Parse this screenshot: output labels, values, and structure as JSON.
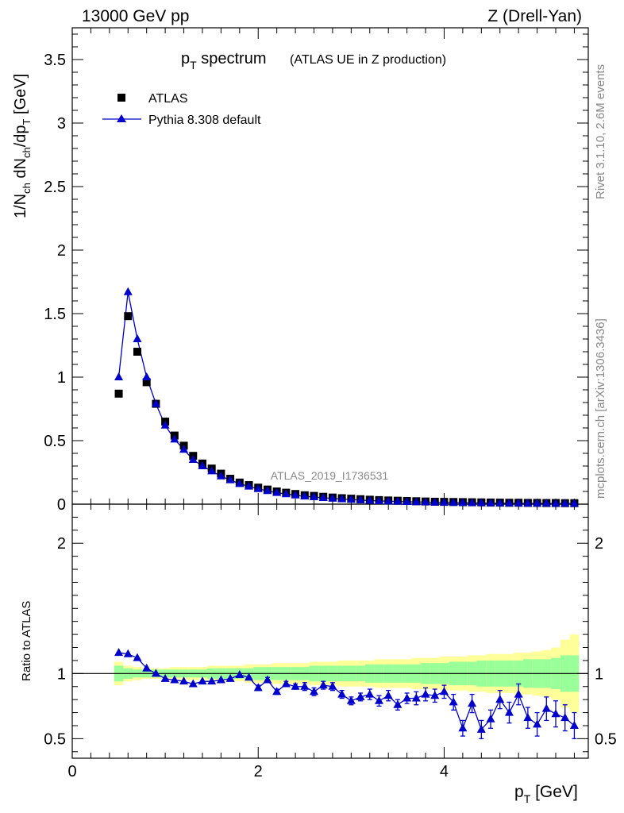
{
  "header": {
    "left": "13000 GeV pp",
    "right": "Z (Drell-Yan)"
  },
  "side": {
    "rivet": "Rivet 3.1.10,  2.6M events",
    "mcplots": "mcplots.cern.ch [arXiv:1306.3436]"
  },
  "chart_data": {
    "type": "scatter",
    "title_main": "p",
    "title_sub": "T",
    "title_rest": " spectrum",
    "title_extra": "(ATLAS UE in Z production)",
    "watermark": "ATLAS_2019_I1736531",
    "x_label_main": "p",
    "x_label_sub": "T",
    "x_label_rest": " [GeV]",
    "y_label_top": "1/N_ch dN_ch/dp_T [GeV]",
    "y_label_bottom": "Ratio to ATLAS",
    "xlim": [
      0,
      5.55
    ],
    "ylim_top": [
      0,
      3.75
    ],
    "ylim_bottom": [
      0.35,
      2.3
    ],
    "x_ticks": [
      "0",
      "2",
      "4"
    ],
    "y_ticks_top": [
      "0",
      "0.5",
      "1",
      "1.5",
      "2",
      "2.5",
      "3",
      "3.5"
    ],
    "y_ticks_bottom": [
      "0.5",
      "1",
      "2"
    ],
    "x": [
      0.5,
      0.6,
      0.7,
      0.8,
      0.9,
      1.0,
      1.1,
      1.2,
      1.3,
      1.4,
      1.5,
      1.6,
      1.7,
      1.8,
      1.9,
      2.0,
      2.1,
      2.2,
      2.3,
      2.4,
      2.5,
      2.6,
      2.7,
      2.8,
      2.9,
      3.0,
      3.1,
      3.2,
      3.3,
      3.4,
      3.5,
      3.6,
      3.7,
      3.8,
      3.9,
      4.0,
      4.1,
      4.2,
      4.3,
      4.4,
      4.5,
      4.6,
      4.7,
      4.8,
      4.9,
      5.0,
      5.1,
      5.2,
      5.3,
      5.4
    ],
    "series": [
      {
        "name": "ATLAS",
        "color": "#000000",
        "marker": "square",
        "values": [
          0.87,
          1.48,
          1.2,
          0.96,
          0.79,
          0.65,
          0.54,
          0.46,
          0.38,
          0.32,
          0.28,
          0.24,
          0.2,
          0.17,
          0.15,
          0.13,
          0.115,
          0.1,
          0.09,
          0.08,
          0.07,
          0.065,
          0.058,
          0.052,
          0.047,
          0.043,
          0.039,
          0.035,
          0.032,
          0.029,
          0.027,
          0.025,
          0.023,
          0.021,
          0.019,
          0.018,
          0.017,
          0.016,
          0.015,
          0.014,
          0.013,
          0.012,
          0.011,
          0.011,
          0.01,
          0.01,
          0.009,
          0.009,
          0.008,
          0.008
        ]
      },
      {
        "name": "Pythia 8.308 default",
        "color": "#0000cc",
        "marker": "triangle",
        "values": [
          1.0,
          1.67,
          1.3,
          1.0,
          0.79,
          0.62,
          0.51,
          0.43,
          0.35,
          0.3,
          0.26,
          0.22,
          0.19,
          0.16,
          0.14,
          0.12,
          0.105,
          0.09,
          0.08,
          0.07,
          0.062,
          0.056,
          0.05,
          0.045,
          0.04,
          0.036,
          0.032,
          0.028,
          0.025,
          0.023,
          0.021,
          0.019,
          0.017,
          0.016,
          0.014,
          0.013,
          0.012,
          0.011,
          0.01,
          0.009,
          0.008,
          0.008,
          0.007,
          0.007,
          0.006,
          0.006,
          0.006,
          0.005,
          0.005,
          0.005
        ],
        "ratio": [
          1.16,
          1.15,
          1.12,
          1.04,
          1.0,
          0.96,
          0.95,
          0.94,
          0.92,
          0.94,
          0.94,
          0.95,
          0.96,
          0.99,
          0.97,
          0.89,
          0.95,
          0.86,
          0.92,
          0.9,
          0.9,
          0.86,
          0.91,
          0.9,
          0.84,
          0.79,
          0.82,
          0.84,
          0.79,
          0.83,
          0.76,
          0.81,
          0.81,
          0.84,
          0.83,
          0.86,
          0.78,
          0.58,
          0.77,
          0.57,
          0.65,
          0.8,
          0.7,
          0.84,
          0.66,
          0.61,
          0.73,
          0.69,
          0.66,
          0.6
        ],
        "ratio_err": [
          0.01,
          0.01,
          0.01,
          0.01,
          0.01,
          0.01,
          0.01,
          0.01,
          0.01,
          0.01,
          0.01,
          0.01,
          0.01,
          0.01,
          0.01,
          0.02,
          0.02,
          0.02,
          0.02,
          0.02,
          0.03,
          0.03,
          0.03,
          0.03,
          0.03,
          0.03,
          0.03,
          0.04,
          0.04,
          0.04,
          0.04,
          0.04,
          0.05,
          0.05,
          0.05,
          0.05,
          0.06,
          0.06,
          0.07,
          0.07,
          0.07,
          0.07,
          0.08,
          0.08,
          0.08,
          0.09,
          0.09,
          0.1,
          0.1,
          0.1
        ]
      }
    ],
    "band_green": [
      0.06,
      0.04,
      0.03,
      0.03,
      0.03,
      0.03,
      0.03,
      0.03,
      0.03,
      0.03,
      0.04,
      0.04,
      0.04,
      0.04,
      0.04,
      0.05,
      0.05,
      0.05,
      0.05,
      0.05,
      0.05,
      0.06,
      0.06,
      0.06,
      0.06,
      0.06,
      0.06,
      0.07,
      0.07,
      0.07,
      0.07,
      0.07,
      0.07,
      0.08,
      0.08,
      0.08,
      0.09,
      0.09,
      0.09,
      0.1,
      0.1,
      0.1,
      0.1,
      0.1,
      0.11,
      0.11,
      0.11,
      0.12,
      0.14,
      0.14
    ],
    "band_yellow": [
      0.09,
      0.06,
      0.05,
      0.04,
      0.04,
      0.04,
      0.05,
      0.05,
      0.05,
      0.05,
      0.06,
      0.06,
      0.06,
      0.06,
      0.07,
      0.07,
      0.07,
      0.08,
      0.08,
      0.08,
      0.08,
      0.09,
      0.09,
      0.09,
      0.1,
      0.1,
      0.1,
      0.1,
      0.11,
      0.11,
      0.11,
      0.11,
      0.12,
      0.12,
      0.12,
      0.13,
      0.13,
      0.13,
      0.14,
      0.14,
      0.15,
      0.15,
      0.15,
      0.16,
      0.16,
      0.17,
      0.18,
      0.2,
      0.26,
      0.3
    ],
    "band_colors": {
      "inner": "#99ff99",
      "outer": "#ffff99"
    },
    "legend": [
      {
        "label": "ATLAS"
      },
      {
        "label": "Pythia 8.308 default"
      }
    ]
  }
}
